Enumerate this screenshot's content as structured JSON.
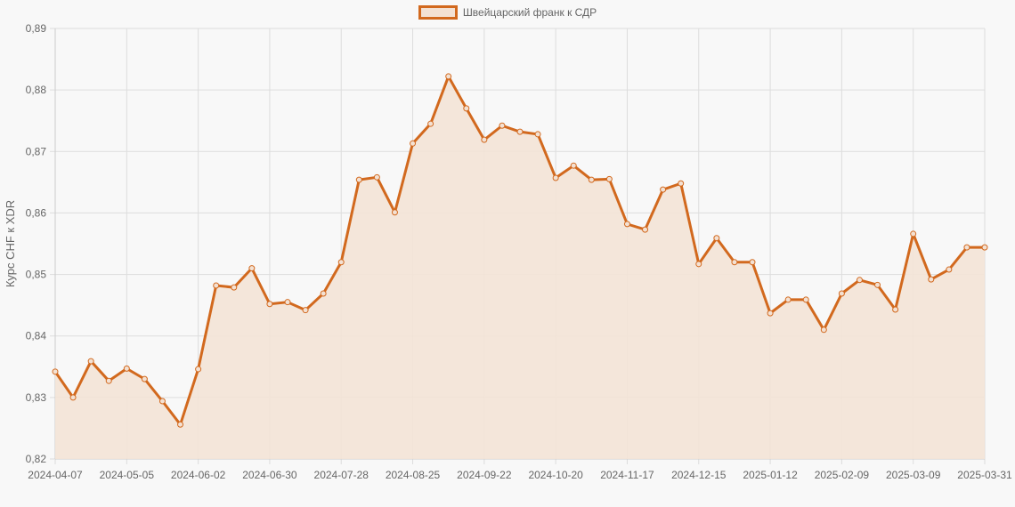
{
  "chart_data": {
    "type": "line",
    "title": "",
    "legend": {
      "position": "top",
      "entries": [
        "Швейцарский франк к СДР"
      ]
    },
    "xlabel": "",
    "ylabel": "Курс CHF к XDR",
    "ylim": [
      0.82,
      0.89
    ],
    "grid": true,
    "fill": true,
    "y_ticks": [
      "0,82",
      "0,83",
      "0,84",
      "0,85",
      "0,86",
      "0,87",
      "0,88",
      "0,89"
    ],
    "x_tick_labels": [
      "2024-04-07",
      "2024-05-05",
      "2024-06-02",
      "2024-06-30",
      "2024-07-28",
      "2024-08-25",
      "2024-09-22",
      "2024-10-20",
      "2024-11-17",
      "2024-12-15",
      "2025-01-12",
      "2025-02-09",
      "2025-03-09",
      "2025-03-31"
    ],
    "x_tick_indices": [
      0,
      4,
      8,
      12,
      16,
      20,
      24,
      28,
      32,
      36,
      40,
      44,
      48,
      52
    ],
    "series": [
      {
        "name": "Швейцарский франк к СДР",
        "color": "#d2691e",
        "fill_color": "#f3e3d6",
        "values": [
          0.8342,
          0.83,
          0.8359,
          0.8327,
          0.8347,
          0.833,
          0.8294,
          0.8256,
          0.8346,
          0.8482,
          0.8479,
          0.851,
          0.8452,
          0.8455,
          0.8442,
          0.8469,
          0.852,
          0.8654,
          0.8658,
          0.8601,
          0.8713,
          0.8745,
          0.8822,
          0.877,
          0.8719,
          0.8742,
          0.8732,
          0.8728,
          0.8657,
          0.8677,
          0.8654,
          0.8655,
          0.8582,
          0.8573,
          0.8638,
          0.8648,
          0.8517,
          0.8559,
          0.852,
          0.852,
          0.8437,
          0.8459,
          0.8459,
          0.841,
          0.8469,
          0.8491,
          0.8483,
          0.8443,
          0.8566,
          0.8492,
          0.8508,
          0.8544,
          0.8544
        ]
      }
    ]
  },
  "legend": {
    "label": "Швейцарский франк к СДР"
  },
  "axis": {
    "ylabel": "Курс CHF к XDR"
  }
}
